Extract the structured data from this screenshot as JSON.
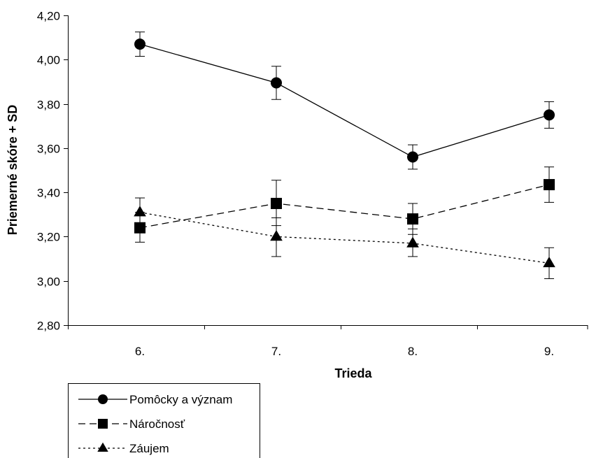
{
  "chart_data": {
    "type": "line",
    "title": "",
    "xlabel": "Trieda",
    "ylabel": "Priemerné skóre + SD",
    "categories": [
      "6.",
      "7.",
      "8.",
      "9."
    ],
    "ylim": [
      2.8,
      4.2
    ],
    "yticks": [
      "2,80",
      "3,00",
      "3,20",
      "3,40",
      "3,60",
      "3,80",
      "4,00",
      "4,20"
    ],
    "ytick_values": [
      2.8,
      3.0,
      3.2,
      3.4,
      3.6,
      3.8,
      4.0,
      4.2
    ],
    "grid": false,
    "legend_position": "bottom-left",
    "series": [
      {
        "name": "Pomôcky a význam",
        "marker": "circle",
        "line": "solid",
        "values": [
          4.07,
          3.895,
          3.56,
          3.75
        ],
        "err_low": [
          4.015,
          3.82,
          3.505,
          3.69
        ],
        "err_high": [
          4.125,
          3.97,
          3.615,
          3.81
        ]
      },
      {
        "name": "Náročnosť",
        "marker": "square",
        "line": "dashed",
        "values": [
          3.24,
          3.35,
          3.28,
          3.435
        ],
        "err_low": [
          3.175,
          3.25,
          3.21,
          3.355
        ],
        "err_high": [
          3.31,
          3.455,
          3.35,
          3.515
        ]
      },
      {
        "name": "Záujem",
        "marker": "triangle",
        "line": "dotted",
        "values": [
          3.31,
          3.2,
          3.17,
          3.08
        ],
        "err_low": [
          3.245,
          3.11,
          3.11,
          3.01
        ],
        "err_high": [
          3.375,
          3.285,
          3.235,
          3.15
        ]
      }
    ]
  }
}
